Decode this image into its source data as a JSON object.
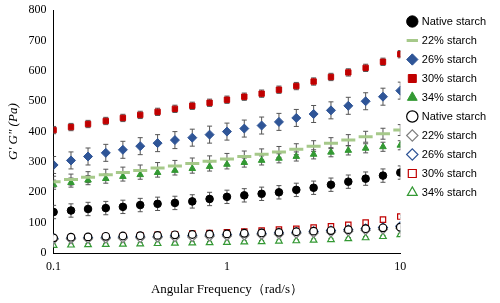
{
  "chart_data": {
    "type": "scatter",
    "x_label": "Angular Frequency（rad/s）",
    "y_label": "G' G\" (Pa)",
    "log": "x",
    "grid": false,
    "legend": "right",
    "xlim": [
      0.1,
      10
    ],
    "xticks": [
      0.1,
      1,
      10
    ],
    "ylim": [
      0,
      800
    ],
    "yticks": [
      0,
      100,
      200,
      300,
      400,
      500,
      600,
      700,
      800
    ],
    "x": [
      0.1,
      0.126,
      0.158,
      0.2,
      0.251,
      0.316,
      0.398,
      0.501,
      0.631,
      0.794,
      1,
      1.259,
      1.585,
      1.995,
      2.512,
      3.162,
      3.981,
      5.012,
      6.31,
      7.943,
      10
    ],
    "series": [
      {
        "name": "Native starch",
        "color": "#000000",
        "marker": "circle",
        "values": [
          135,
          140,
          145,
          148,
          152,
          158,
          162,
          165,
          170,
          178,
          185,
          190,
          195,
          200,
          208,
          215,
          225,
          235,
          245,
          255,
          265
        ],
        "errors": [
          22,
          22,
          22,
          22,
          22,
          22,
          22,
          22,
          22,
          22,
          22,
          22,
          22,
          22,
          22,
          22,
          22,
          22,
          22,
          22,
          22
        ]
      },
      {
        "name": "22% starch",
        "color": "#a6c98a",
        "marker": "dash",
        "values": [
          235,
          242,
          250,
          258,
          265,
          272,
          280,
          287,
          295,
          302,
          310,
          318,
          325,
          333,
          342,
          352,
          362,
          372,
          383,
          393,
          405
        ],
        "errors": [
          18,
          18,
          18,
          18,
          18,
          18,
          18,
          18,
          18,
          18,
          18,
          18,
          18,
          18,
          18,
          18,
          18,
          18,
          18,
          18,
          18
        ]
      },
      {
        "name": "26% starch",
        "color": "#2f5597",
        "marker": "diamond",
        "values": [
          290,
          305,
          318,
          330,
          340,
          352,
          362,
          372,
          380,
          390,
          400,
          410,
          420,
          432,
          445,
          458,
          470,
          485,
          500,
          515,
          535
        ],
        "errors": [
          28,
          28,
          28,
          28,
          28,
          28,
          28,
          28,
          28,
          28,
          28,
          28,
          28,
          28,
          28,
          28,
          28,
          28,
          28,
          28,
          28
        ]
      },
      {
        "name": "30% starch",
        "color": "#c00000",
        "marker": "square",
        "values": [
          405,
          415,
          425,
          435,
          445,
          455,
          465,
          475,
          485,
          495,
          505,
          515,
          525,
          538,
          550,
          565,
          580,
          595,
          610,
          630,
          655
        ],
        "errors": [
          12,
          12,
          12,
          12,
          12,
          12,
          12,
          12,
          12,
          12,
          12,
          12,
          12,
          12,
          12,
          12,
          12,
          12,
          12,
          12,
          12
        ]
      },
      {
        "name": "34% starch",
        "color": "#339933",
        "marker": "triangle",
        "values": [
          225,
          232,
          240,
          245,
          252,
          258,
          265,
          272,
          278,
          285,
          292,
          298,
          305,
          312,
          318,
          325,
          332,
          338,
          345,
          350,
          355
        ],
        "errors": [
          15,
          15,
          15,
          15,
          15,
          15,
          15,
          15,
          15,
          15,
          15,
          15,
          15,
          15,
          15,
          15,
          15,
          15,
          15,
          15,
          15
        ]
      },
      {
        "name": "Native starch",
        "color": "#000000",
        "marker": "open_circle",
        "values": [
          50,
          52,
          53,
          55,
          56,
          57,
          58,
          60,
          61,
          62,
          63,
          65,
          66,
          68,
          70,
          72,
          74,
          77,
          80,
          83,
          85
        ],
        "errors": [
          5,
          5,
          5,
          5,
          5,
          5,
          5,
          5,
          5,
          5,
          5,
          5,
          5,
          5,
          5,
          5,
          5,
          5,
          5,
          5,
          5
        ]
      },
      {
        "name": "22% starch",
        "color": "#808080",
        "marker": "open_diamond",
        "values": [
          45,
          46,
          47,
          48,
          49,
          50,
          51,
          52,
          53,
          55,
          56,
          58,
          60,
          62,
          64,
          66,
          69,
          72,
          75,
          78,
          82
        ],
        "errors": [
          5,
          5,
          5,
          5,
          5,
          5,
          5,
          5,
          5,
          5,
          5,
          5,
          5,
          5,
          5,
          5,
          5,
          5,
          5,
          5,
          5
        ]
      },
      {
        "name": "26% starch",
        "color": "#2f5597",
        "marker": "open_diamond",
        "values": [
          48,
          49,
          50,
          51,
          52,
          53,
          54,
          56,
          57,
          59,
          60,
          62,
          64,
          66,
          68,
          71,
          74,
          77,
          80,
          84,
          88
        ],
        "errors": [
          5,
          5,
          5,
          5,
          5,
          5,
          5,
          5,
          5,
          5,
          5,
          5,
          5,
          5,
          5,
          5,
          5,
          5,
          5,
          5,
          5
        ]
      },
      {
        "name": "30% starch",
        "color": "#c00000",
        "marker": "open_square",
        "values": [
          48,
          50,
          52,
          54,
          56,
          58,
          60,
          62,
          64,
          66,
          68,
          71,
          74,
          77,
          80,
          84,
          88,
          93,
          100,
          110,
          120
        ],
        "errors": [
          5,
          5,
          5,
          5,
          5,
          5,
          5,
          5,
          5,
          5,
          5,
          5,
          5,
          5,
          5,
          5,
          5,
          5,
          5,
          5,
          5
        ]
      },
      {
        "name": "34% starch",
        "color": "#339933",
        "marker": "open_triangle",
        "values": [
          25,
          26,
          27,
          28,
          29,
          30,
          31,
          32,
          33,
          34,
          35,
          36,
          37,
          39,
          40,
          42,
          44,
          47,
          50,
          54,
          60
        ],
        "errors": [
          4,
          4,
          4,
          4,
          4,
          4,
          4,
          4,
          4,
          4,
          4,
          4,
          4,
          4,
          4,
          4,
          4,
          4,
          4,
          4,
          4
        ]
      }
    ]
  }
}
